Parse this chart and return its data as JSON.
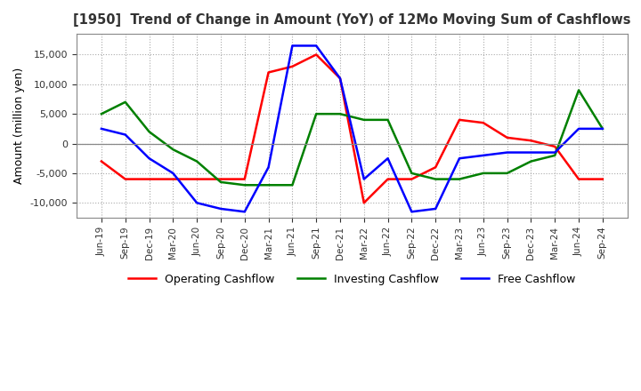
{
  "title": "[1950]  Trend of Change in Amount (YoY) of 12Mo Moving Sum of Cashflows",
  "ylabel": "Amount (million yen)",
  "x_labels": [
    "Jun-19",
    "Sep-19",
    "Dec-19",
    "Mar-20",
    "Jun-20",
    "Sep-20",
    "Dec-20",
    "Mar-21",
    "Jun-21",
    "Sep-21",
    "Dec-21",
    "Mar-22",
    "Jun-22",
    "Sep-22",
    "Dec-22",
    "Mar-23",
    "Jun-23",
    "Sep-23",
    "Dec-23",
    "Mar-24",
    "Jun-24",
    "Sep-24"
  ],
  "operating_cashflow": [
    -3000,
    -6000,
    -6000,
    -6000,
    -6000,
    -6000,
    -6000,
    12000,
    13000,
    15000,
    11000,
    -10000,
    -6000,
    -6000,
    -4000,
    4000,
    3500,
    1000,
    500,
    -500,
    -6000,
    -6000
  ],
  "investing_cashflow": [
    5000,
    7000,
    2000,
    -1000,
    -3000,
    -6500,
    -7000,
    -7000,
    -7000,
    5000,
    5000,
    4000,
    4000,
    -5000,
    -6000,
    -6000,
    -5000,
    -5000,
    -3000,
    -2000,
    9000,
    2500
  ],
  "free_cashflow": [
    2500,
    1500,
    -2500,
    -5000,
    -10000,
    -11000,
    -11500,
    -4000,
    16500,
    16500,
    11000,
    -6000,
    -2500,
    -11500,
    -11000,
    -2500,
    -2000,
    -1500,
    -1500,
    -1500,
    2500,
    2500
  ],
  "operating_color": "#FF0000",
  "investing_color": "#008000",
  "free_color": "#0000FF",
  "ylim": [
    -12500,
    18500
  ],
  "yticks": [
    -10000,
    -5000,
    0,
    5000,
    10000,
    15000
  ],
  "background_color": "#FFFFFF",
  "grid_color": "#AAAAAA"
}
